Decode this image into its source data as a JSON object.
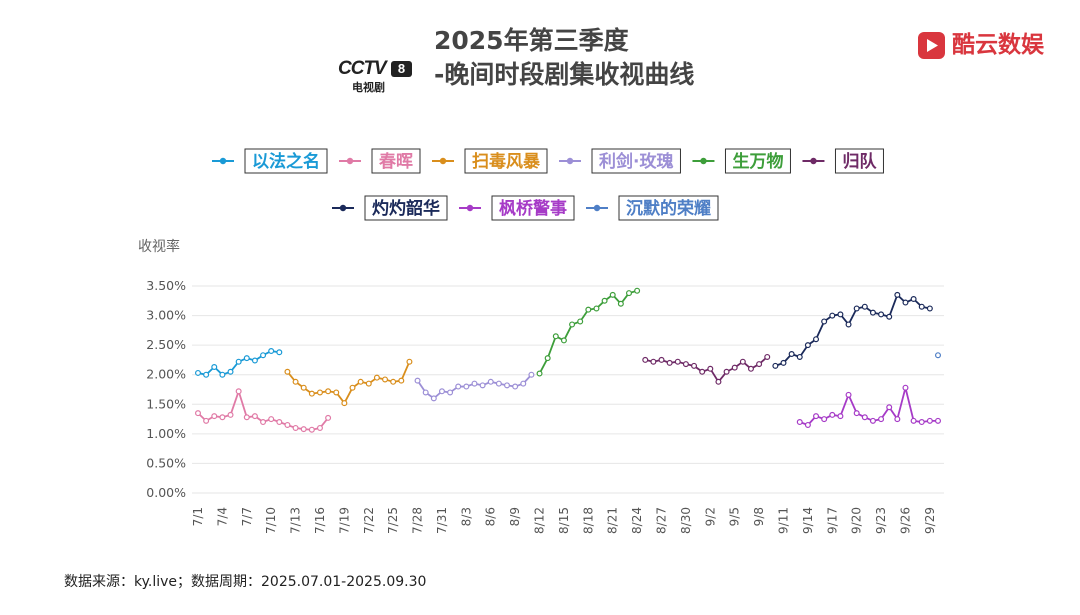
{
  "header": {
    "title_line1": "2025年第三季度",
    "title_line2": "-晚间时段剧集收视曲线",
    "channel_logo_text": "CCTV",
    "channel_number": "8",
    "channel_sub": "电视剧",
    "brand_name": "酷云数娱"
  },
  "footer": {
    "source": "数据来源：ky.live；数据周期：2025.07.01-2025.09.30"
  },
  "chart_data": {
    "type": "line",
    "title": "2025年第三季度-晚间时段剧集收视曲线",
    "ylabel": "收视率",
    "xlabel": "",
    "ylim": [
      0,
      3.5
    ],
    "y_ticks": [
      "0.00%",
      "0.50%",
      "1.00%",
      "1.50%",
      "2.00%",
      "2.50%",
      "3.00%",
      "3.50%"
    ],
    "x_start": "7/1",
    "x_end": "9/30",
    "x_ticks": [
      "7/1",
      "7/4",
      "7/7",
      "7/10",
      "7/13",
      "7/16",
      "7/19",
      "7/22",
      "7/25",
      "7/28",
      "7/31",
      "8/3",
      "8/6",
      "8/9",
      "8/12",
      "8/15",
      "8/18",
      "8/21",
      "8/24",
      "8/27",
      "8/30",
      "9/2",
      "9/5",
      "9/8",
      "9/11",
      "9/14",
      "9/17",
      "9/20",
      "9/23",
      "9/26",
      "9/29"
    ],
    "grid": "horizontal",
    "legend_placement": "top",
    "series": [
      {
        "name": "以法之名",
        "color": "#1a9ad6",
        "x": [
          "7/1",
          "7/2",
          "7/3",
          "7/4",
          "7/5",
          "7/6",
          "7/7",
          "7/8",
          "7/9",
          "7/10",
          "7/11"
        ],
        "values": [
          2.03,
          2.0,
          2.13,
          2.0,
          2.05,
          2.22,
          2.28,
          2.24,
          2.33,
          2.4,
          2.38
        ]
      },
      {
        "name": "春晖",
        "color": "#e07aa6",
        "x": [
          "7/1",
          "7/2",
          "7/3",
          "7/4",
          "7/5",
          "7/6",
          "7/7",
          "7/8",
          "7/9",
          "7/10",
          "7/11",
          "7/12",
          "7/13",
          "7/14",
          "7/15",
          "7/16",
          "7/17"
        ],
        "values": [
          1.35,
          1.22,
          1.3,
          1.28,
          1.32,
          1.72,
          1.28,
          1.3,
          1.2,
          1.25,
          1.2,
          1.15,
          1.1,
          1.08,
          1.07,
          1.1,
          1.27
        ]
      },
      {
        "name": "扫毒风暴",
        "color": "#d98e1c",
        "x": [
          "7/12",
          "7/13",
          "7/14",
          "7/15",
          "7/16",
          "7/17",
          "7/18",
          "7/19",
          "7/20",
          "7/21",
          "7/22",
          "7/23",
          "7/24",
          "7/25",
          "7/26",
          "7/27"
        ],
        "values": [
          2.05,
          1.88,
          1.78,
          1.68,
          1.7,
          1.72,
          1.7,
          1.52,
          1.78,
          1.88,
          1.85,
          1.95,
          1.92,
          1.88,
          1.9,
          2.22
        ]
      },
      {
        "name": "利剑·玫瑰",
        "color": "#9c8fd6",
        "x": [
          "7/28",
          "7/29",
          "7/30",
          "7/31",
          "8/1",
          "8/2",
          "8/3",
          "8/4",
          "8/5",
          "8/6",
          "8/7",
          "8/8",
          "8/9",
          "8/10",
          "8/11"
        ],
        "values": [
          1.9,
          1.7,
          1.6,
          1.72,
          1.7,
          1.8,
          1.8,
          1.85,
          1.82,
          1.88,
          1.85,
          1.82,
          1.8,
          1.85,
          2.0
        ]
      },
      {
        "name": "生万物",
        "color": "#3d9e3a",
        "x": [
          "8/12",
          "8/13",
          "8/14",
          "8/15",
          "8/16",
          "8/17",
          "8/18",
          "8/19",
          "8/20",
          "8/21",
          "8/22",
          "8/23",
          "8/24"
        ],
        "values": [
          2.02,
          2.28,
          2.65,
          2.58,
          2.85,
          2.9,
          3.1,
          3.12,
          3.25,
          3.35,
          3.2,
          3.38,
          3.42
        ]
      },
      {
        "name": "归队",
        "color": "#6e2a66",
        "x": [
          "8/25",
          "8/26",
          "8/27",
          "8/28",
          "8/29",
          "8/30",
          "8/31",
          "9/1",
          "9/2",
          "9/3",
          "9/4",
          "9/5",
          "9/6",
          "9/7",
          "9/8",
          "9/9"
        ],
        "values": [
          2.25,
          2.22,
          2.25,
          2.2,
          2.22,
          2.18,
          2.15,
          2.05,
          2.1,
          1.88,
          2.05,
          2.12,
          2.22,
          2.1,
          2.18,
          2.3
        ]
      },
      {
        "name": "灼灼韶华",
        "color": "#1b2a5a",
        "x": [
          "9/10",
          "9/11",
          "9/12",
          "9/13",
          "9/14",
          "9/15",
          "9/16",
          "9/17",
          "9/18",
          "9/19",
          "9/20",
          "9/21",
          "9/22",
          "9/23",
          "9/24",
          "9/25",
          "9/26",
          "9/27",
          "9/28",
          "9/29"
        ],
        "values": [
          2.15,
          2.2,
          2.35,
          2.3,
          2.5,
          2.6,
          2.9,
          3.0,
          3.02,
          2.85,
          3.12,
          3.15,
          3.05,
          3.02,
          2.98,
          3.35,
          3.22,
          3.28,
          3.15,
          3.12
        ]
      },
      {
        "name": "枫桥警事",
        "color": "#a63bc7",
        "x": [
          "9/13",
          "9/14",
          "9/15",
          "9/16",
          "9/17",
          "9/18",
          "9/19",
          "9/20",
          "9/21",
          "9/22",
          "9/23",
          "9/24",
          "9/25",
          "9/26",
          "9/27",
          "9/28",
          "9/29",
          "9/30"
        ],
        "values": [
          1.2,
          1.15,
          1.3,
          1.25,
          1.32,
          1.3,
          1.66,
          1.35,
          1.28,
          1.22,
          1.25,
          1.45,
          1.25,
          1.78,
          1.22,
          1.2,
          1.22,
          1.22
        ]
      },
      {
        "name": "沉默的荣耀",
        "color": "#4f7fc6",
        "x": [
          "9/30"
        ],
        "values": [
          2.33
        ]
      }
    ]
  }
}
